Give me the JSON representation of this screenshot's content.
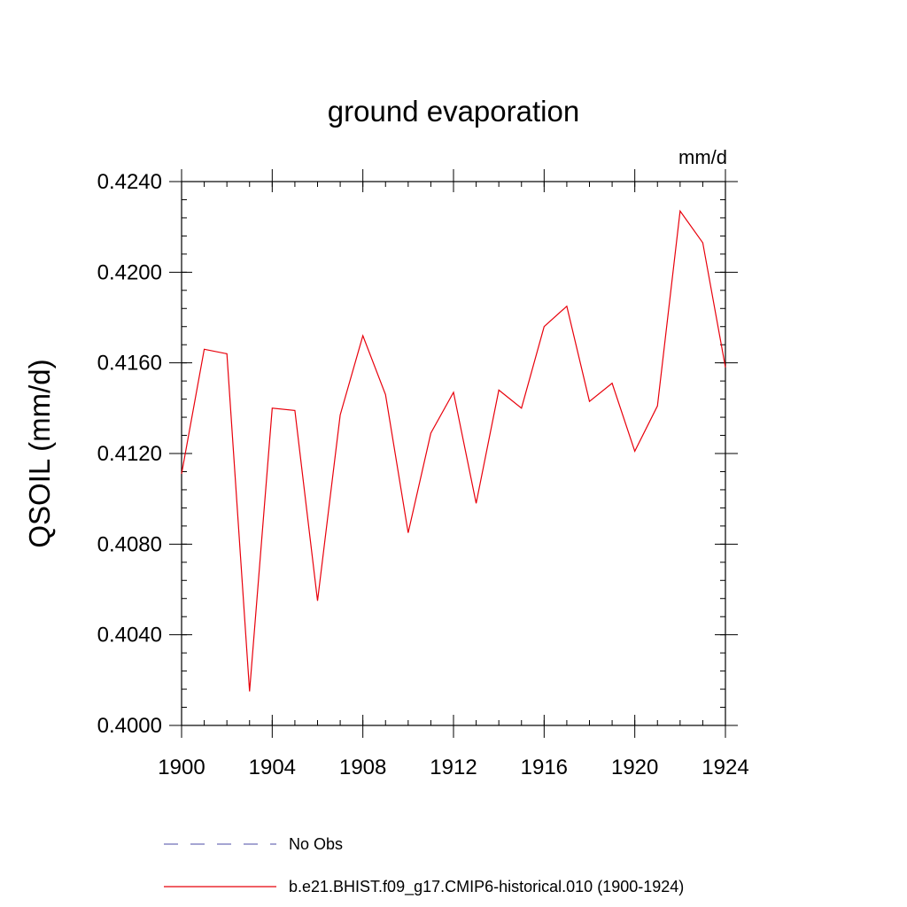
{
  "chart_data": {
    "type": "line",
    "title": "ground evaporation",
    "units": "mm/d",
    "ylabel": "QSOIL  (mm/d)",
    "xlabel": "",
    "xlim": [
      1900,
      1924
    ],
    "ylim": [
      0.4,
      0.424
    ],
    "xticks": [
      "1900",
      "1904",
      "1908",
      "1912",
      "1916",
      "1920",
      "1924"
    ],
    "yticks": [
      "0.4000",
      "0.4040",
      "0.4080",
      "0.4120",
      "0.4160",
      "0.4200",
      "0.4240"
    ],
    "grid": false,
    "legend_placement": "bottom",
    "series": [
      {
        "name": "b.e21.BHIST.f09_g17.CMIP6-historical.010 (1900-1924)",
        "color": "#e8000b",
        "style": "solid",
        "x": [
          1900,
          1901,
          1902,
          1903,
          1904,
          1905,
          1906,
          1907,
          1908,
          1909,
          1910,
          1911,
          1912,
          1913,
          1914,
          1915,
          1916,
          1917,
          1918,
          1919,
          1920,
          1921,
          1922,
          1923,
          1924
        ],
        "values": [
          0.4111,
          0.4166,
          0.4164,
          0.4015,
          0.414,
          0.4139,
          0.4055,
          0.4137,
          0.4172,
          0.4146,
          0.4085,
          0.4129,
          0.4147,
          0.4098,
          0.4148,
          0.414,
          0.4176,
          0.4185,
          0.4143,
          0.4151,
          0.4121,
          0.4141,
          0.4227,
          0.4213,
          0.4158
        ]
      }
    ],
    "legend": [
      {
        "label": "No Obs",
        "color": "#6f6fb8",
        "style": "dashed"
      },
      {
        "label": "b.e21.BHIST.f09_g17.CMIP6-historical.010 (1900-1924)",
        "color": "#e8000b",
        "style": "solid"
      }
    ]
  }
}
